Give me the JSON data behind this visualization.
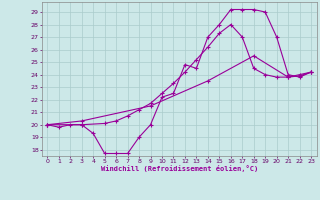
{
  "xlabel": "Windchill (Refroidissement éolien,°C)",
  "bg_color": "#cce8e8",
  "line_color": "#990099",
  "grid_color": "#aacccc",
  "xlim": [
    -0.5,
    23.5
  ],
  "ylim": [
    17.5,
    29.8
  ],
  "xticks": [
    0,
    1,
    2,
    3,
    4,
    5,
    6,
    7,
    8,
    9,
    10,
    11,
    12,
    13,
    14,
    15,
    16,
    17,
    18,
    19,
    20,
    21,
    22,
    23
  ],
  "yticks": [
    18,
    19,
    20,
    21,
    22,
    23,
    24,
    25,
    26,
    27,
    28,
    29
  ],
  "line1_x": [
    0,
    1,
    2,
    3,
    4,
    5,
    6,
    7,
    8,
    9,
    10,
    11,
    12,
    13,
    14,
    15,
    16,
    17,
    18,
    19,
    20,
    21,
    22,
    23
  ],
  "line1_y": [
    20.0,
    19.8,
    20.0,
    20.0,
    19.3,
    17.7,
    17.7,
    17.7,
    19.0,
    20.0,
    22.2,
    22.5,
    24.8,
    24.5,
    27.0,
    28.0,
    29.2,
    29.2,
    29.2,
    29.0,
    27.0,
    24.0,
    23.8,
    24.2
  ],
  "line2_x": [
    0,
    3,
    5,
    6,
    7,
    8,
    9,
    10,
    11,
    12,
    13,
    14,
    15,
    16,
    17,
    18,
    19,
    20,
    21,
    22,
    23
  ],
  "line2_y": [
    20.0,
    20.0,
    20.1,
    20.3,
    20.7,
    21.2,
    21.7,
    22.5,
    23.3,
    24.2,
    25.2,
    26.2,
    27.3,
    28.0,
    27.0,
    24.5,
    24.0,
    23.8,
    23.8,
    24.0,
    24.2
  ],
  "line3_x": [
    0,
    3,
    9,
    14,
    18,
    21,
    22,
    23
  ],
  "line3_y": [
    20.0,
    20.3,
    21.5,
    23.5,
    25.5,
    23.8,
    23.9,
    24.2
  ]
}
